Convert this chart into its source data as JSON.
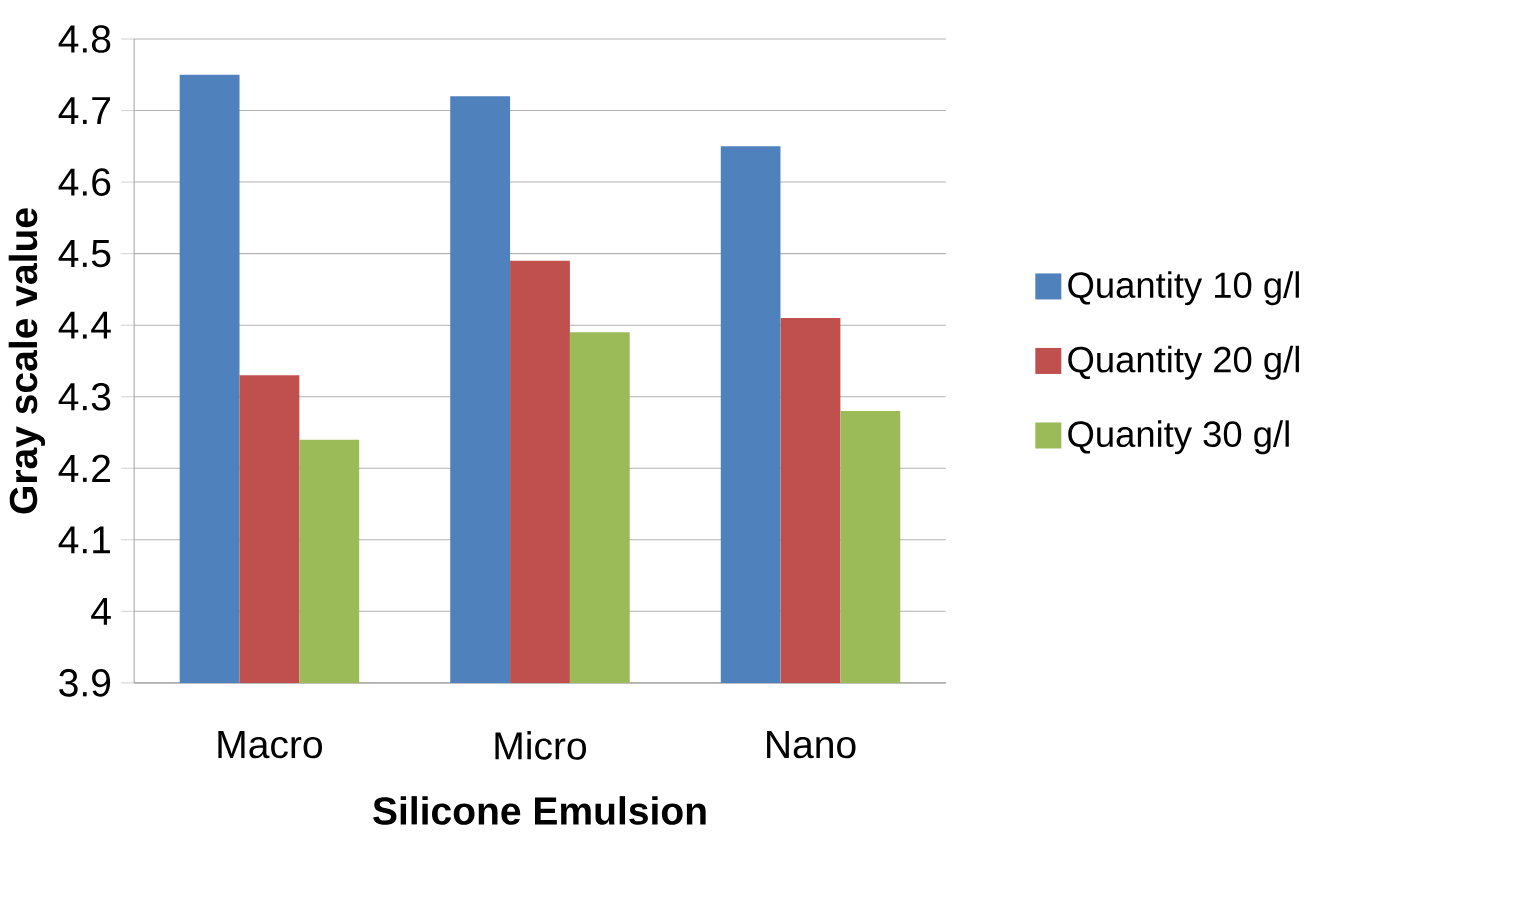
{
  "chart_data": {
    "type": "bar",
    "xlabel": "Silicone Emulsion",
    "ylabel": "Gray scale value",
    "categories": [
      "Macro",
      "Micro",
      "Nano"
    ],
    "series": [
      {
        "name": "Quantity 10 g/l",
        "color": "#4f81bd",
        "values": [
          4.75,
          4.72,
          4.65
        ]
      },
      {
        "name": "Quantity 20 g/l",
        "color": "#c0504d",
        "values": [
          4.33,
          4.49,
          4.41
        ]
      },
      {
        "name": "Quanity 30 g/l",
        "color": "#9bbb59",
        "values": [
          4.24,
          4.39,
          4.28
        ]
      }
    ],
    "ylim": [
      3.9,
      4.8
    ],
    "yticks": [
      3.9,
      4,
      4.1,
      4.2,
      4.3,
      4.4,
      4.5,
      4.6,
      4.7,
      4.8
    ],
    "grid": "y",
    "legend": "right"
  }
}
